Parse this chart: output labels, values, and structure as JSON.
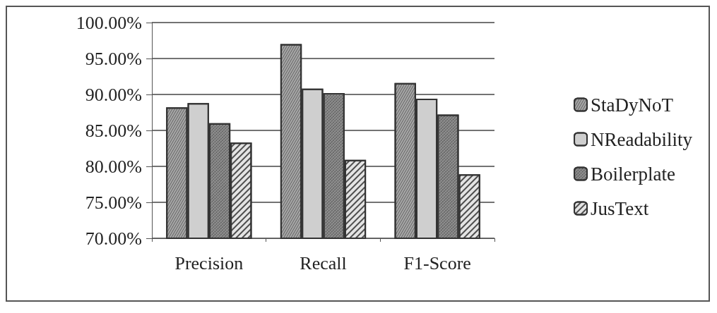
{
  "chart_data": {
    "type": "bar",
    "categories": [
      "Precision",
      "Recall",
      "F1-Score"
    ],
    "series": [
      {
        "name": "StaDyNoT",
        "color": "#a8a8a8",
        "values": [
          88.2,
          97.0,
          91.6
        ]
      },
      {
        "name": "NReadability",
        "color": "#cfcfcf",
        "values": [
          88.8,
          90.8,
          89.4
        ]
      },
      {
        "name": "Boilerplate",
        "color": "#8c8c8c",
        "values": [
          86.0,
          90.2,
          87.2
        ]
      },
      {
        "name": "JusText",
        "color": "#e4e4e4",
        "values": [
          83.3,
          80.9,
          78.9
        ]
      }
    ],
    "ylim": [
      70,
      100
    ],
    "yticks": [
      {
        "value": 70,
        "label": "70.00%"
      },
      {
        "value": 75,
        "label": "75.00%"
      },
      {
        "value": 80,
        "label": "80.00%"
      },
      {
        "value": 85,
        "label": "85.00%"
      },
      {
        "value": 90,
        "label": "90.00%"
      },
      {
        "value": 95,
        "label": "95.00%"
      },
      {
        "value": 100,
        "label": "100.00%"
      }
    ],
    "grid": "y",
    "legend": "right"
  }
}
